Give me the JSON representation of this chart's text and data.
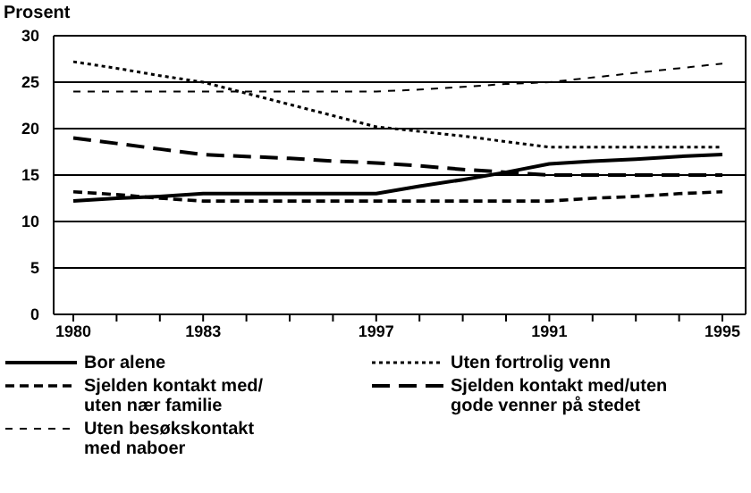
{
  "chart_data": {
    "type": "line",
    "ylabel": "Prosent",
    "categories": [
      "1980",
      null,
      null,
      "1983",
      null,
      null,
      null,
      "1997",
      null,
      null,
      null,
      "1991",
      null,
      null,
      null,
      "1995"
    ],
    "ylim": [
      0,
      30
    ],
    "yticks": [
      0,
      5,
      10,
      15,
      20,
      25,
      30
    ],
    "grid": "y",
    "legend": "bottom",
    "marker": "none",
    "series": [
      {
        "name": "Bor alene",
        "color": "#000000",
        "line_style": "solid",
        "values": [
          12.2,
          12.5,
          12.7,
          13,
          13,
          13,
          13,
          13,
          13.8,
          14.5,
          15.3,
          16.2,
          16.5,
          16.7,
          17,
          17.2
        ]
      },
      {
        "name": "Uten fortrolig venn",
        "color": "#000000",
        "line_style": "dotted",
        "values": [
          27.2,
          26.5,
          25.7,
          25,
          23.8,
          22.6,
          21.4,
          20.2,
          19.7,
          19.2,
          18.6,
          18,
          18,
          18,
          18,
          18
        ]
      },
      {
        "name": "Sjelden kontakt med/ uten nær familie",
        "color": "#000000",
        "line_style": "dashed",
        "values": [
          13.2,
          12.9,
          12.5,
          12.2,
          12.2,
          12.2,
          12.2,
          12.2,
          12.2,
          12.2,
          12.2,
          12.2,
          12.5,
          12.7,
          13,
          13.2
        ]
      },
      {
        "name": "Sjelden kontakt med/uten gode venner på stedet",
        "color": "#000000",
        "line_style": "dashed",
        "values": [
          19,
          18.4,
          17.8,
          17.2,
          17,
          16.8,
          16.5,
          16.3,
          16,
          15.6,
          15.3,
          15,
          15,
          15,
          15,
          15
        ]
      },
      {
        "name": "Uten besøkskontakt med naboer",
        "color": "#000000",
        "line_style": "dashed",
        "values": [
          24,
          24,
          24,
          24,
          24,
          24,
          24,
          24,
          24.2,
          24.5,
          24.8,
          25,
          25.5,
          26,
          26.5,
          27
        ]
      }
    ]
  }
}
